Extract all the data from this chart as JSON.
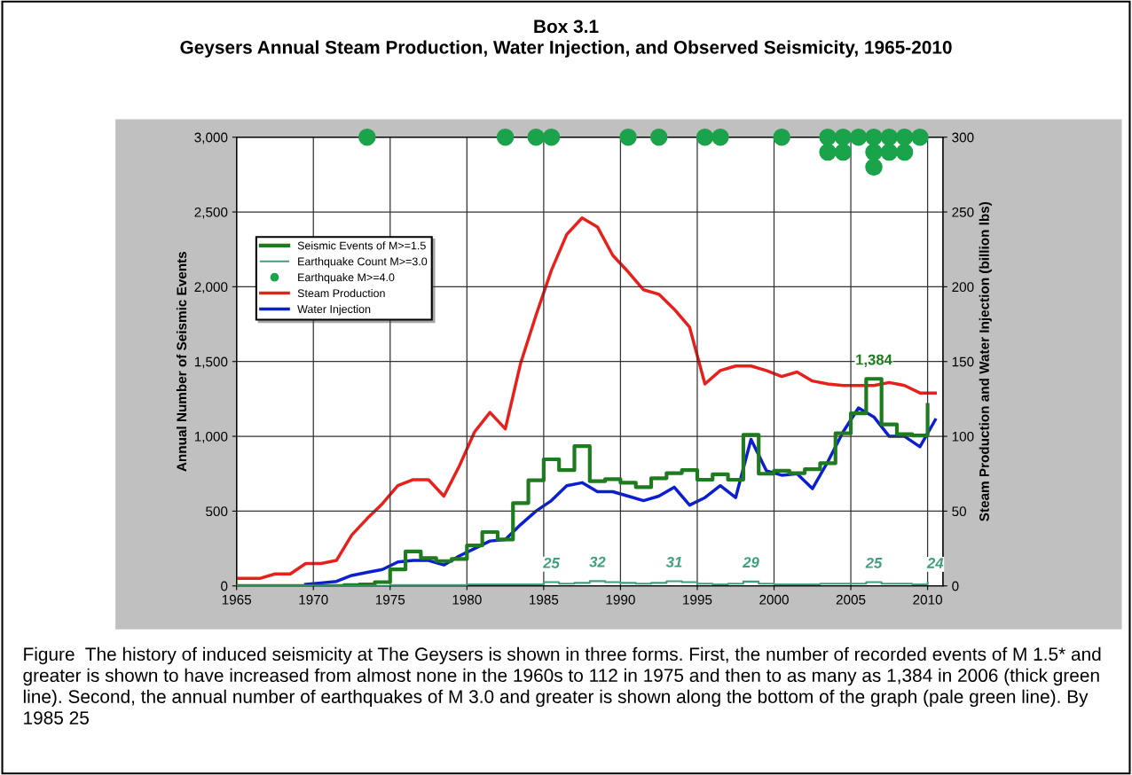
{
  "chart_data": {
    "type": "line",
    "title": "Box 3.1",
    "subtitle": "Geysers Annual Steam Production, Water Injection, and Observed Seismicity, 1965-2010",
    "ylabel": "Annual Number of Seismic Events",
    "y2label": "Steam Production and Water Injection (billion lbs)",
    "xlim": [
      1965,
      2011
    ],
    "xticks": [
      1965,
      1970,
      1975,
      1980,
      1985,
      1990,
      1995,
      2000,
      2005,
      2010
    ],
    "ylim": [
      0,
      3000
    ],
    "yticks": [
      0,
      500,
      {
        "value": 1000,
        "label": "1,000"
      },
      {
        "value": 1500,
        "label": "1,500"
      },
      {
        "value": 2000,
        "label": "2,000"
      },
      {
        "value": 2500,
        "label": "2,500"
      },
      {
        "value": 3000,
        "label": "3,000"
      }
    ],
    "y2lim": [
      0,
      300
    ],
    "y2ticks": [
      0,
      50,
      100,
      150,
      200,
      250,
      300
    ],
    "grid": true,
    "legend": "top left",
    "series": [
      {
        "name": "Seismic Events of M>=1.5",
        "type": "step",
        "color": "#1e7b1e",
        "x": [
          1965,
          1966,
          1967,
          1968,
          1969,
          1970,
          1971,
          1972,
          1973,
          1974,
          1975,
          1976,
          1977,
          1978,
          1979,
          1980,
          1981,
          1982,
          1983,
          1984,
          1985,
          1986,
          1987,
          1988,
          1989,
          1990,
          1991,
          1992,
          1993,
          1994,
          1995,
          1996,
          1997,
          1998,
          1999,
          2000,
          2001,
          2002,
          2003,
          2004,
          2005,
          2006,
          2007,
          2008,
          2009,
          2010
        ],
        "values": [
          0,
          0,
          0,
          0,
          0,
          0,
          0,
          5,
          10,
          25,
          110,
          230,
          186,
          166,
          180,
          270,
          360,
          310,
          554,
          706,
          846,
          774,
          934,
          700,
          714,
          690,
          660,
          720,
          754,
          774,
          710,
          746,
          710,
          1010,
          750,
          770,
          754,
          780,
          820,
          1020,
          1154,
          1384,
          1080,
          1014,
          1006,
          1210
        ],
        "value_labels": [
          null,
          null,
          null,
          null,
          null,
          null,
          null,
          null,
          null,
          null,
          null,
          null,
          null,
          null,
          null,
          null,
          null,
          null,
          null,
          null,
          null,
          null,
          null,
          null,
          null,
          null,
          null,
          null,
          null,
          null,
          null,
          null,
          null,
          null,
          null,
          null,
          null,
          null,
          null,
          null,
          null,
          "1,384",
          null,
          null,
          null,
          null
        ]
      },
      {
        "name": "Earthquake Count M>=3.0",
        "type": "step",
        "color": "#3f9f7f",
        "x": [
          1965,
          1966,
          1967,
          1968,
          1969,
          1970,
          1971,
          1972,
          1973,
          1974,
          1975,
          1976,
          1977,
          1978,
          1979,
          1980,
          1981,
          1982,
          1983,
          1984,
          1985,
          1986,
          1987,
          1988,
          1989,
          1990,
          1991,
          1992,
          1993,
          1994,
          1995,
          1996,
          1997,
          1998,
          1999,
          2000,
          2001,
          2002,
          2003,
          2004,
          2005,
          2006,
          2007,
          2008,
          2009,
          2010
        ],
        "values": [
          0,
          0,
          0,
          0,
          0,
          0,
          0,
          0,
          0,
          0,
          5,
          5,
          5,
          5,
          5,
          10,
          10,
          10,
          10,
          10,
          25,
          15,
          20,
          32,
          25,
          20,
          15,
          20,
          31,
          25,
          15,
          10,
          15,
          29,
          15,
          10,
          10,
          10,
          15,
          15,
          15,
          25,
          15,
          15,
          10,
          24
        ],
        "value_labels": [
          null,
          null,
          null,
          null,
          null,
          null,
          null,
          null,
          null,
          null,
          null,
          null,
          null,
          null,
          null,
          null,
          null,
          null,
          null,
          null,
          "25",
          null,
          null,
          "32",
          null,
          null,
          null,
          null,
          "31",
          null,
          null,
          null,
          null,
          "29",
          null,
          null,
          null,
          null,
          null,
          null,
          null,
          "25",
          null,
          null,
          null,
          "24"
        ]
      },
      {
        "name": "Earthquake M>=4.0",
        "type": "scatter",
        "color": "#1aa34a",
        "x": [
          1973.5,
          1982.5,
          1984.5,
          1985.5,
          1990.5,
          1992.5,
          1995.5,
          1996.5,
          2000.5,
          2003.5,
          2003.5,
          2004.5,
          2004.5,
          2005.5,
          2006.5,
          2006.5,
          2006.5,
          2007.5,
          2007.5,
          2008.5,
          2008.5,
          2009.5
        ],
        "values": [
          3000,
          3000,
          3000,
          3000,
          3000,
          3000,
          3000,
          3000,
          3000,
          3000,
          2900,
          3000,
          2900,
          3000,
          3000,
          2900,
          2800,
          3000,
          2900,
          3000,
          2900,
          3000
        ]
      },
      {
        "name": "Steam Production",
        "axis": "y2",
        "color": "#e8201c",
        "x": [
          1965,
          1966.5,
          1967.5,
          1968.5,
          1969.5,
          1970.5,
          1971.5,
          1972.5,
          1973.5,
          1974.5,
          1975.5,
          1976.5,
          1977.5,
          1978.5,
          1979.5,
          1980.5,
          1981.5,
          1982.5,
          1983.5,
          1984.5,
          1985.5,
          1986.5,
          1987.5,
          1988.5,
          1989.5,
          1990.5,
          1991.5,
          1992.5,
          1993.5,
          1994.5,
          1995.5,
          1996.5,
          1997.5,
          1998.5,
          1999.5,
          2000.5,
          2001.5,
          2002.5,
          2003.5,
          2004.5,
          2005.5,
          2006.5,
          2007.5,
          2008.5,
          2009.5,
          2010.5
        ],
        "values": [
          5,
          5,
          8,
          8,
          15,
          15,
          17,
          34,
          45,
          55,
          67,
          71,
          71,
          60,
          80,
          103,
          116,
          105,
          149,
          181,
          211,
          235,
          246,
          240,
          221,
          210,
          198,
          195,
          185,
          173,
          135,
          144,
          147,
          147,
          144,
          140,
          143,
          137,
          135,
          134,
          134,
          134,
          136,
          134,
          129,
          129
        ]
      },
      {
        "name": "Water Injection",
        "axis": "y2",
        "color": "#0b1fd0",
        "x": [
          1969.5,
          1970.5,
          1971.5,
          1972.5,
          1973.5,
          1974.5,
          1975.5,
          1976.5,
          1977.5,
          1978.5,
          1979.5,
          1980.5,
          1981.5,
          1982.5,
          1983.5,
          1984.5,
          1985.5,
          1986.5,
          1987.5,
          1988.5,
          1989.5,
          1990.5,
          1991.5,
          1992.5,
          1993.5,
          1994.5,
          1995.5,
          1996.5,
          1997.5,
          1998.5,
          1999.5,
          2000.5,
          2001.5,
          2002.5,
          2003.5,
          2004.5,
          2005.5,
          2006.5,
          2007.5,
          2008.5,
          2009.5,
          2010.5
        ],
        "values": [
          1,
          2,
          3,
          7,
          9,
          11,
          16,
          17,
          17,
          14,
          20,
          25,
          30,
          31,
          41,
          50,
          57,
          67,
          69,
          63,
          63,
          60,
          57,
          60,
          66,
          54,
          59,
          67,
          59,
          98,
          77,
          74,
          75,
          65,
          83,
          103,
          119,
          113,
          100,
          100,
          93,
          111
        ]
      }
    ],
    "annotations": [
      "Figure  The history of induced seismicity at The Geysers is shown in three forms. First, the number of recorded events of M 1.5* and greater is shown to have increased from almost none in the 1960s to 112 in 1975 and then to as many as 1,384 in 2006 (thick green line). Second, the annual number of earthquakes of M 3.0 and greater is shown along the bottom of the graph (pale green line). By 1985 25"
    ]
  }
}
